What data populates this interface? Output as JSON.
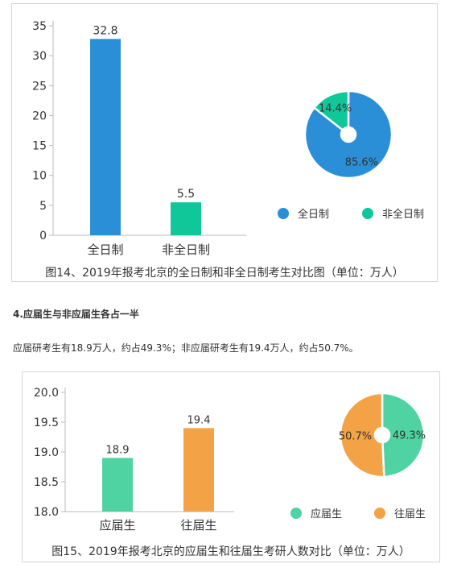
{
  "chart_data": [
    {
      "type": "bar",
      "categories": [
        "全日制",
        "非全日制"
      ],
      "values": [
        32.8,
        5.5
      ],
      "value_labels": [
        "32.8",
        "5.5"
      ],
      "ylim": [
        0,
        35
      ],
      "yticks": [
        "0",
        "5",
        "10",
        "15",
        "20",
        "25",
        "30",
        "35"
      ],
      "colors": [
        "#2a8fd6",
        "#10c79a"
      ],
      "caption": "图14、2019年报考北京的全日制和非全日制考生对比图（单位：万人）",
      "pie": {
        "type": "pie",
        "labels": [
          "全日制",
          "非全日制"
        ],
        "values": [
          85.6,
          14.4
        ],
        "value_labels": [
          "85.6%",
          "14.4%"
        ],
        "colors": [
          "#2a8fd6",
          "#10c79a"
        ]
      },
      "legend": {
        "position": "bottom-right",
        "items": [
          "全日制",
          "非全日制"
        ]
      }
    },
    {
      "type": "bar",
      "categories": [
        "应届生",
        "往届生"
      ],
      "values": [
        18.9,
        19.4
      ],
      "value_labels": [
        "18.9",
        "19.4"
      ],
      "ylim": [
        18.0,
        20.0
      ],
      "yticks": [
        "18.0",
        "18.5",
        "19.0",
        "19.5",
        "20.0"
      ],
      "colors": [
        "#4fd3a2",
        "#f3a245"
      ],
      "caption": "图15、2019年报考北京的应届生和往届生考研人数对比（单位：万人）",
      "pie": {
        "type": "pie",
        "labels": [
          "应届生",
          "往届生"
        ],
        "values": [
          49.3,
          50.7
        ],
        "value_labels": [
          "49.3%",
          "50.7%"
        ],
        "colors": [
          "#4fd3a2",
          "#f3a245"
        ]
      },
      "legend": {
        "position": "bottom-right",
        "items": [
          "应届生",
          "往届生"
        ]
      }
    }
  ],
  "article": {
    "heading": "4.应届生与非应届生各占一半",
    "paragraph": "应届研考生有18.9万人，约占49.3%；非应届研考生有19.4万人，约占50.7%。"
  }
}
